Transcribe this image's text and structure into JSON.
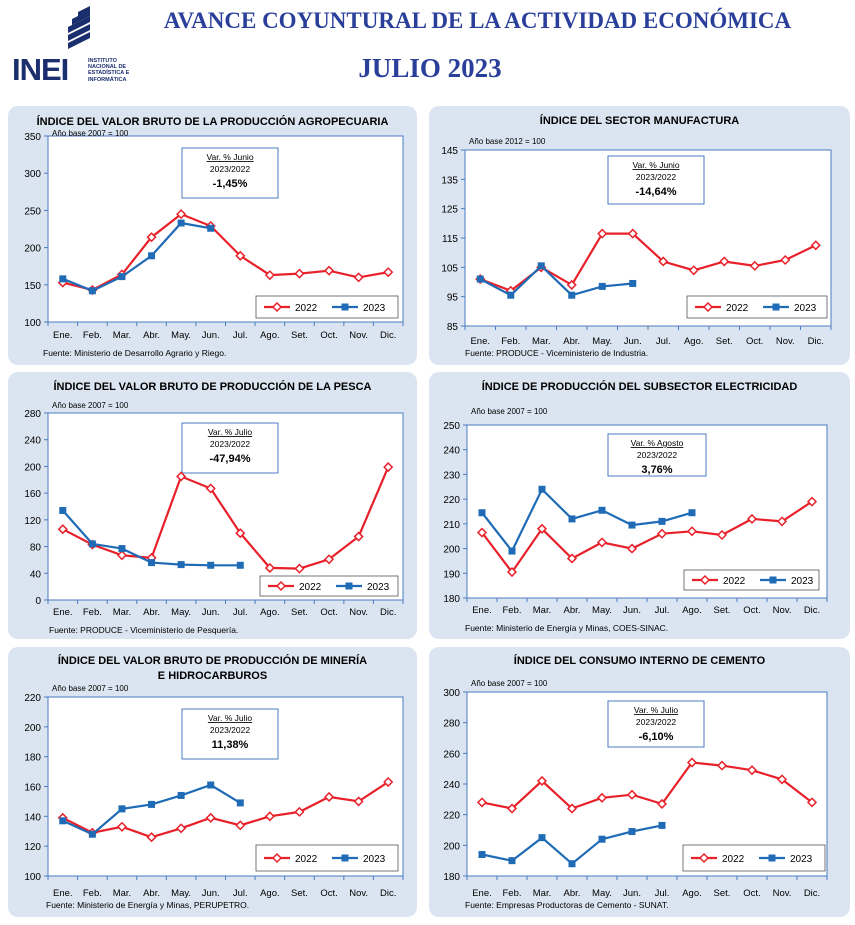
{
  "header": {
    "title": "AVANCE COYUNTURAL DE LA ACTIVIDAD ECONÓMICA",
    "subtitle": "JULIO 2023",
    "logo_text": "INEI",
    "logo_small": "INSTITUTO NACIONAL DE ESTADÍSTICA E INFORMÁTICA"
  },
  "colors": {
    "s2022": "#e8202a",
    "s2023": "#1f6bb5",
    "panel": "#dbe5f1",
    "title": "#2a3f9a"
  },
  "months": [
    "Ene.",
    "Feb.",
    "Mar.",
    "Abr.",
    "May.",
    "Jun.",
    "Jul.",
    "Ago.",
    "Set.",
    "Oct.",
    "Nov.",
    "Dic."
  ],
  "chart_data": [
    {
      "type": "line",
      "title": [
        "ÍNDICE DEL VALOR BRUTO DE LA PRODUCCIÓN AGROPECUARIA"
      ],
      "base": "Año base  2007  =  100",
      "ylim": [
        100,
        350
      ],
      "yticks": [
        100,
        150,
        200,
        250,
        300,
        350
      ],
      "var_label": "Var. % Junio",
      "var_period": "2023/2022",
      "var_value": "-1,45%",
      "source": "Fuente: Ministerio de Desarrollo Agrario y Riego.",
      "series": [
        {
          "name": "2022",
          "values": [
            153,
            143,
            164,
            214,
            245,
            229,
            189,
            163,
            165,
            169,
            160,
            167
          ]
        },
        {
          "name": "2023",
          "values": [
            158,
            142,
            161,
            189,
            233,
            226
          ]
        }
      ]
    },
    {
      "type": "line",
      "title": [
        "ÍNDICE DEL SECTOR MANUFACTURA"
      ],
      "base": "Año base  2012  =  100",
      "ylim": [
        85,
        145
      ],
      "yticks": [
        85,
        95,
        105,
        115,
        125,
        135,
        145
      ],
      "var_label": "Var. % Junio",
      "var_period": "2023/2022",
      "var_value": "-14,64%",
      "source": "Fuente: PRODUCE - Viceministerio de Industria.",
      "series": [
        {
          "name": "2022",
          "values": [
            101,
            97,
            105,
            99,
            116.5,
            116.5,
            107,
            104,
            107,
            105.5,
            107.5,
            112.5
          ]
        },
        {
          "name": "2023",
          "values": [
            101,
            95.5,
            105.5,
            95.5,
            98.5,
            99.5
          ]
        }
      ]
    },
    {
      "type": "line",
      "title": [
        "ÍNDICE DEL VALOR BRUTO DE PRODUCCIÓN DE LA PESCA"
      ],
      "base": "Año base  2007  =  100",
      "ylim": [
        0,
        280
      ],
      "yticks": [
        0,
        40,
        80,
        120,
        160,
        200,
        240,
        280
      ],
      "var_label": "Var. % Julio",
      "var_period": "2023/2022",
      "var_value": "-47,94%",
      "source": "Fuente:  PRODUCE - Viceministerio de Pesquería.",
      "series": [
        {
          "name": "2022",
          "values": [
            106,
            83,
            67,
            63,
            185,
            167,
            100,
            48,
            47,
            61,
            95,
            199
          ]
        },
        {
          "name": "2023",
          "values": [
            134,
            84,
            77,
            56,
            53,
            52,
            52
          ]
        }
      ]
    },
    {
      "type": "line",
      "title": [
        "ÍNDICE DE PRODUCCIÓN DEL SUBSECTOR ELECTRICIDAD"
      ],
      "base": "Año base  2007  =  100",
      "ylim": [
        180,
        250
      ],
      "yticks": [
        180,
        190,
        200,
        210,
        220,
        230,
        240,
        250
      ],
      "var_label": "Var. % Agosto",
      "var_period": "2023/2022",
      "var_value": "3,76%",
      "source": "Fuente: Ministerio de Energía y Minas, COES-SINAC.",
      "series": [
        {
          "name": "2022",
          "values": [
            206.5,
            190.5,
            208,
            196,
            202.5,
            200,
            206,
            207,
            205.5,
            212,
            211,
            219
          ]
        },
        {
          "name": "2023",
          "values": [
            214.5,
            199,
            224,
            212,
            215.5,
            209.5,
            211,
            214.5
          ]
        }
      ]
    },
    {
      "type": "line",
      "title": [
        "ÍNDICE DEL VALOR BRUTO DE PRODUCCIÓN DE MINERÍA",
        "E HIDROCARBUROS"
      ],
      "base": "Año base  2007  =  100",
      "ylim": [
        100,
        220
      ],
      "yticks": [
        100,
        120,
        140,
        160,
        180,
        200,
        220
      ],
      "var_label": "Var. % Julio",
      "var_period": "2023/2022",
      "var_value": "11,38%",
      "source": "Fuente: Ministerio de Energía y Minas, PERUPETRO.",
      "series": [
        {
          "name": "2022",
          "values": [
            139,
            129,
            133,
            126,
            132,
            139,
            134,
            140,
            143,
            153,
            150,
            163
          ]
        },
        {
          "name": "2023",
          "values": [
            137,
            128,
            145,
            148,
            154,
            161,
            149
          ]
        }
      ]
    },
    {
      "type": "line",
      "title": [
        "ÍNDICE DEL CONSUMO INTERNO DE CEMENTO"
      ],
      "base": "Año base  2007  =  100",
      "ylim": [
        180,
        300
      ],
      "yticks": [
        180,
        200,
        220,
        240,
        260,
        280,
        300
      ],
      "var_label": "Var. % Julio",
      "var_period": "2023/2022",
      "var_value": "-6,10%",
      "source": "Fuente: Empresas Productoras de Cemento - SUNAT.",
      "series": [
        {
          "name": "2022",
          "values": [
            228,
            224,
            242,
            224,
            231,
            233,
            227,
            254,
            252,
            249,
            243,
            228
          ]
        },
        {
          "name": "2023",
          "values": [
            194,
            190,
            205,
            188,
            204,
            209,
            213
          ]
        }
      ]
    }
  ]
}
